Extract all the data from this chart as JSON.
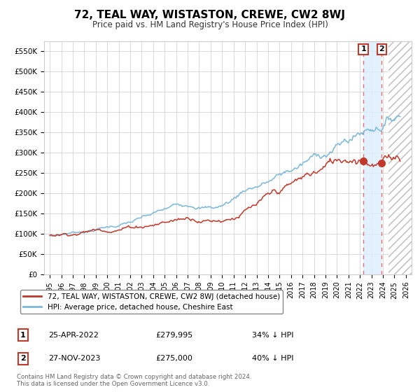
{
  "title": "72, TEAL WAY, WISTASTON, CREWE, CW2 8WJ",
  "subtitle": "Price paid vs. HM Land Registry's House Price Index (HPI)",
  "hpi_label": "HPI: Average price, detached house, Cheshire East",
  "property_label": "72, TEAL WAY, WISTASTON, CREWE, CW2 8WJ (detached house)",
  "sale1_date": "25-APR-2022",
  "sale1_price": 279995,
  "sale1_pct": "34% ↓ HPI",
  "sale1_year": 2022.3,
  "sale2_date": "27-NOV-2023",
  "sale2_price": 275000,
  "sale2_pct": "40% ↓ HPI",
  "sale2_year": 2023.9,
  "hpi_color": "#7ab8d9",
  "property_color": "#c0392b",
  "dot_color": "#c0392b",
  "highlight_color": "#ddeeff",
  "dashed_color": "#e07070",
  "grid_color": "#cccccc",
  "hatch_color": "#bbbbbb",
  "footnote": "Contains HM Land Registry data © Crown copyright and database right 2024.\nThis data is licensed under the Open Government Licence v3.0.",
  "ylim": [
    0,
    575000
  ],
  "xlim_start": 1994.5,
  "xlim_end": 2026.5,
  "yticks": [
    0,
    50000,
    100000,
    150000,
    200000,
    250000,
    300000,
    350000,
    400000,
    450000,
    500000,
    550000
  ],
  "ytick_labels": [
    "£0",
    "£50K",
    "£100K",
    "£150K",
    "£200K",
    "£250K",
    "£300K",
    "£350K",
    "£400K",
    "£450K",
    "£500K",
    "£550K"
  ],
  "xticks": [
    1995,
    1996,
    1997,
    1998,
    1999,
    2000,
    2001,
    2002,
    2003,
    2004,
    2005,
    2006,
    2007,
    2008,
    2009,
    2010,
    2011,
    2012,
    2013,
    2014,
    2015,
    2016,
    2017,
    2018,
    2019,
    2020,
    2021,
    2022,
    2023,
    2024,
    2025,
    2026
  ]
}
